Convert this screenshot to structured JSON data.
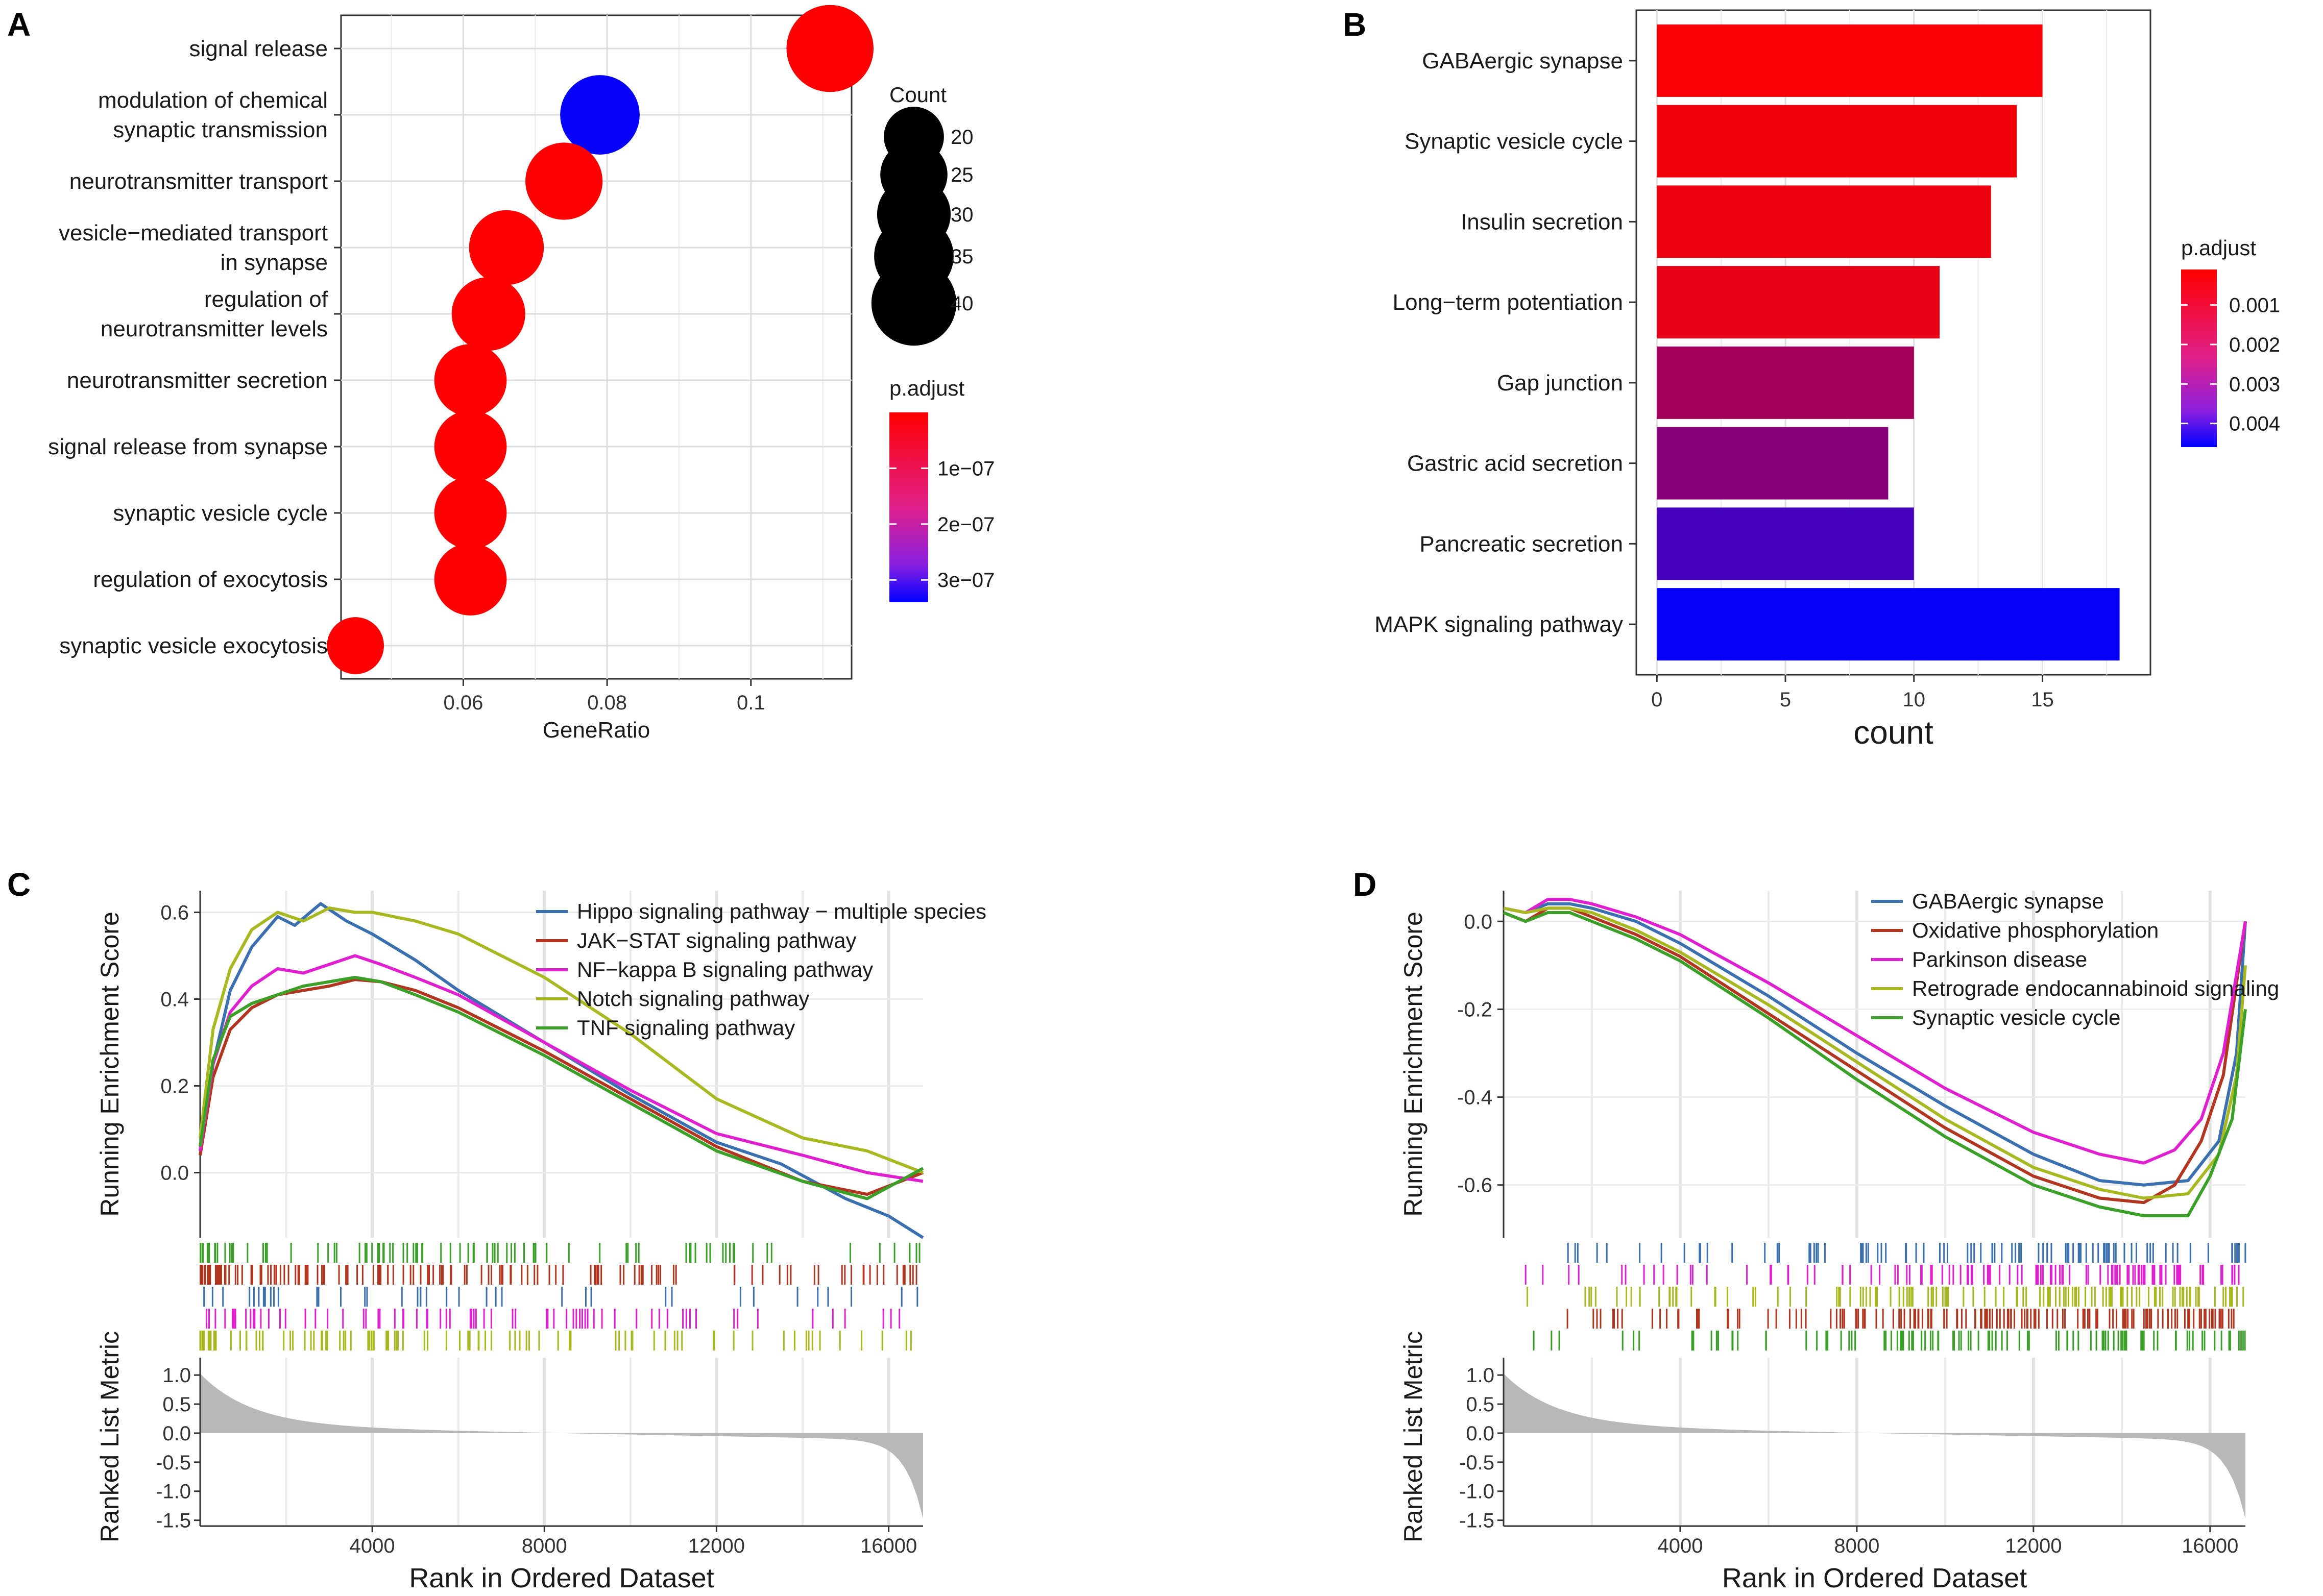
{
  "chart_data": [
    {
      "panel": "A",
      "type": "scatter",
      "xlabel": "GeneRatio",
      "xticks": [
        0.06,
        0.08,
        0.1
      ],
      "xlim": [
        0.043,
        0.114
      ],
      "categories": [
        "signal release",
        "modulation of chemical synaptic transmission",
        "neurotransmitter transport",
        "vesicle−mediated transport in synapse",
        "regulation of neurotransmitter levels",
        "neurotransmitter secretion",
        "signal release from synapse",
        "synaptic vesicle cycle",
        "regulation of exocytosis",
        "synaptic vesicle exocytosis"
      ],
      "category_lines": [
        [
          "signal release"
        ],
        [
          "modulation of chemical",
          "synaptic transmission"
        ],
        [
          "neurotransmitter transport"
        ],
        [
          "vesicle−mediated transport",
          "in synapse"
        ],
        [
          "regulation of",
          "neurotransmitter levels"
        ],
        [
          "neurotransmitter secretion"
        ],
        [
          "signal release from synapse"
        ],
        [
          "synaptic vesicle cycle"
        ],
        [
          "regulation of exocytosis"
        ],
        [
          "synaptic vesicle exocytosis"
        ]
      ],
      "gene_ratio": [
        0.111,
        0.079,
        0.074,
        0.066,
        0.0635,
        0.061,
        0.061,
        0.061,
        0.061,
        0.045
      ],
      "count": [
        42,
        35,
        33,
        31,
        30,
        29,
        29,
        29,
        29,
        18
      ],
      "p_adjust": [
        1e-09,
        3.3e-07,
        1e-09,
        1e-09,
        1e-09,
        1e-09,
        1e-09,
        1e-09,
        1e-09,
        1e-09
      ],
      "size_legend": {
        "title": "Count",
        "values": [
          20,
          25,
          30,
          35,
          40
        ]
      },
      "color_legend": {
        "title": "p.adjust",
        "labels": [
          "1e−07",
          "2e−07",
          "3e−07"
        ],
        "values": [
          1e-07,
          2e-07,
          3e-07
        ],
        "range": [
          0,
          3.4e-07
        ],
        "low_color": "#ff0000",
        "high_color": "#0000ff"
      }
    },
    {
      "panel": "B",
      "type": "bar",
      "orientation": "horizontal",
      "xlabel": "count",
      "xticks": [
        0,
        5,
        10,
        15
      ],
      "xlim": [
        -0.8,
        19.2
      ],
      "categories": [
        "GABAergic synapse",
        "Synaptic vesicle cycle",
        "Insulin secretion",
        "Long−term potentiation",
        "Gap junction",
        "Gastric acid secretion",
        "Pancreatic secretion",
        "MAPK signaling pathway"
      ],
      "values": [
        15,
        14,
        13,
        11,
        10,
        9,
        10,
        18
      ],
      "p_adjust": [
        0.0002,
        0.0003,
        0.0004,
        0.0005,
        0.0017,
        0.0022,
        0.0034,
        0.0045
      ],
      "color_legend": {
        "title": "p.adjust",
        "labels": [
          "0.001",
          "0.002",
          "0.003",
          "0.004"
        ],
        "values": [
          0.001,
          0.002,
          0.003,
          0.004
        ],
        "range": [
          0.0001,
          0.0046
        ],
        "low_color": "#ff0000",
        "high_color": "#0000ff"
      }
    },
    {
      "panel": "C",
      "type": "line",
      "xlabel": "Rank in Ordered Dataset",
      "ylabel": "Running Enrichment Score",
      "ylabel2": "Ranked List Metric",
      "xticks": [
        4000,
        8000,
        12000,
        16000
      ],
      "xlim": [
        0,
        16800
      ],
      "yticks": [
        0.0,
        0.2,
        0.4,
        0.6
      ],
      "ytick_labels": [
        "0.0",
        "0.2",
        "0.4",
        "0.6"
      ],
      "ylim": [
        -0.15,
        0.65
      ],
      "metric_ticks": [
        "1.0",
        "0.5",
        "0.0",
        "-0.5",
        "-1.0",
        "-1.5"
      ],
      "metric_values": [
        1.0,
        0.5,
        0.0,
        -0.5,
        -1.0,
        -1.5
      ],
      "metric_ylim": [
        -1.6,
        1.3
      ],
      "series": [
        {
          "name": "Hippo signaling pathway − multiple species",
          "color": "#3a6fb0",
          "x": [
            0,
            300,
            700,
            1200,
            1800,
            2200,
            2800,
            3400,
            4000,
            5000,
            6000,
            8000,
            10000,
            12000,
            13500,
            15000,
            16000,
            16800
          ],
          "y": [
            0.05,
            0.25,
            0.42,
            0.52,
            0.59,
            0.57,
            0.62,
            0.58,
            0.55,
            0.49,
            0.42,
            0.3,
            0.18,
            0.07,
            0.02,
            -0.06,
            -0.1,
            -0.15
          ]
        },
        {
          "name": "JAK−STAT signaling pathway",
          "color": "#b2361f",
          "x": [
            0,
            300,
            700,
            1200,
            1800,
            2400,
            3000,
            3600,
            4200,
            5000,
            6000,
            8000,
            10000,
            12000,
            14000,
            15500,
            16800
          ],
          "y": [
            0.04,
            0.22,
            0.33,
            0.38,
            0.41,
            0.42,
            0.43,
            0.445,
            0.44,
            0.42,
            0.38,
            0.28,
            0.17,
            0.06,
            -0.02,
            -0.05,
            0.0
          ]
        },
        {
          "name": "NF−kappa B signaling pathway",
          "color": "#e020d0",
          "x": [
            0,
            300,
            700,
            1200,
            1800,
            2400,
            3000,
            3600,
            4200,
            5000,
            6000,
            8000,
            10000,
            12000,
            14000,
            15500,
            16800
          ],
          "y": [
            0.05,
            0.25,
            0.37,
            0.43,
            0.47,
            0.46,
            0.48,
            0.5,
            0.48,
            0.45,
            0.41,
            0.3,
            0.19,
            0.09,
            0.04,
            0.0,
            -0.02
          ]
        },
        {
          "name": "Notch signaling pathway",
          "color": "#a8b820",
          "x": [
            0,
            300,
            700,
            1200,
            1800,
            2400,
            3000,
            3600,
            4000,
            5000,
            6000,
            8000,
            10000,
            12000,
            14000,
            15500,
            16800
          ],
          "y": [
            0.08,
            0.33,
            0.47,
            0.56,
            0.6,
            0.58,
            0.61,
            0.6,
            0.6,
            0.58,
            0.55,
            0.45,
            0.32,
            0.17,
            0.08,
            0.05,
            0.0
          ]
        },
        {
          "name": "TNF signaling pathway",
          "color": "#3aa028",
          "x": [
            0,
            300,
            700,
            1200,
            1800,
            2400,
            3000,
            3600,
            4200,
            5000,
            6000,
            8000,
            10000,
            12000,
            14000,
            15500,
            16800
          ],
          "y": [
            0.06,
            0.26,
            0.36,
            0.39,
            0.41,
            0.43,
            0.44,
            0.45,
            0.44,
            0.41,
            0.37,
            0.27,
            0.16,
            0.05,
            -0.02,
            -0.06,
            0.01
          ]
        }
      ]
    },
    {
      "panel": "D",
      "type": "line",
      "xlabel": "Rank in Ordered Dataset",
      "ylabel": "Running Enrichment Score",
      "ylabel2": "Ranked List Metric",
      "xticks": [
        4000,
        8000,
        12000,
        16000
      ],
      "xlim": [
        0,
        16800
      ],
      "yticks": [
        0.0,
        -0.2,
        -0.4,
        -0.6
      ],
      "ytick_labels": [
        "0.0",
        "-0.2",
        "-0.4",
        "-0.6"
      ],
      "ylim": [
        -0.72,
        0.07
      ],
      "metric_ticks": [
        "1.0",
        "0.5",
        "0.0",
        "-0.5",
        "-1.0",
        "-1.5"
      ],
      "metric_values": [
        1.0,
        0.5,
        0.0,
        -0.5,
        -1.0,
        -1.5
      ],
      "metric_ylim": [
        -1.6,
        1.3
      ],
      "series": [
        {
          "name": "GABAergic synapse",
          "color": "#3a6fb0",
          "x": [
            0,
            500,
            1000,
            1500,
            2000,
            3000,
            4000,
            6000,
            8000,
            10000,
            12000,
            13500,
            14500,
            15500,
            16200,
            16600,
            16800
          ],
          "y": [
            0.03,
            0.02,
            0.04,
            0.04,
            0.03,
            0.0,
            -0.05,
            -0.17,
            -0.3,
            -0.42,
            -0.53,
            -0.59,
            -0.6,
            -0.59,
            -0.5,
            -0.3,
            0.0
          ]
        },
        {
          "name": "Oxidative phosphorylation",
          "color": "#b2361f",
          "x": [
            0,
            500,
            1000,
            1500,
            2000,
            3000,
            4000,
            6000,
            8000,
            10000,
            12000,
            13500,
            14500,
            15200,
            15800,
            16300,
            16800
          ],
          "y": [
            0.02,
            0.0,
            0.03,
            0.03,
            0.01,
            -0.03,
            -0.08,
            -0.21,
            -0.34,
            -0.47,
            -0.58,
            -0.63,
            -0.64,
            -0.6,
            -0.5,
            -0.35,
            0.0
          ]
        },
        {
          "name": "Parkinson disease",
          "color": "#e020d0",
          "x": [
            0,
            500,
            1000,
            1500,
            2000,
            3000,
            4000,
            6000,
            8000,
            10000,
            12000,
            13500,
            14500,
            15200,
            15800,
            16300,
            16800
          ],
          "y": [
            0.03,
            0.02,
            0.05,
            0.05,
            0.04,
            0.01,
            -0.03,
            -0.14,
            -0.26,
            -0.38,
            -0.48,
            -0.53,
            -0.55,
            -0.52,
            -0.45,
            -0.3,
            0.0
          ]
        },
        {
          "name": "Retrograde endocannabinoid signaling",
          "color": "#a8b820",
          "x": [
            0,
            500,
            1000,
            1500,
            2000,
            3000,
            4000,
            6000,
            8000,
            10000,
            12000,
            13500,
            14500,
            15500,
            16200,
            16600,
            16800
          ],
          "y": [
            0.03,
            0.02,
            0.03,
            0.03,
            0.02,
            -0.02,
            -0.07,
            -0.19,
            -0.32,
            -0.45,
            -0.56,
            -0.61,
            -0.63,
            -0.62,
            -0.53,
            -0.35,
            -0.1
          ]
        },
        {
          "name": "Synaptic vesicle cycle",
          "color": "#3aa028",
          "x": [
            0,
            500,
            1000,
            1500,
            2000,
            3000,
            4000,
            6000,
            8000,
            10000,
            12000,
            13500,
            14500,
            15500,
            16000,
            16500,
            16800
          ],
          "y": [
            0.02,
            0.0,
            0.02,
            0.02,
            0.0,
            -0.04,
            -0.09,
            -0.22,
            -0.36,
            -0.49,
            -0.6,
            -0.65,
            -0.67,
            -0.67,
            -0.58,
            -0.45,
            -0.2
          ]
        }
      ]
    }
  ]
}
